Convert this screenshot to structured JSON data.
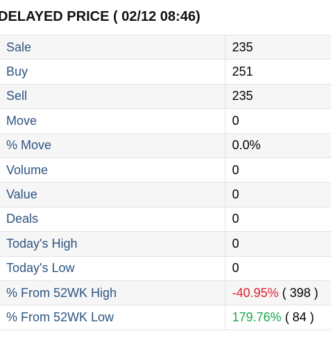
{
  "title": "DELAYED PRICE ( 02/12 08:46)",
  "rows": [
    {
      "label": "Sale",
      "value": "235"
    },
    {
      "label": "Buy",
      "value": "251"
    },
    {
      "label": "Sell",
      "value": "235"
    },
    {
      "label": "Move",
      "value": "0"
    },
    {
      "label": "% Move",
      "value": "0.0%"
    },
    {
      "label": "Volume",
      "value": "0"
    },
    {
      "label": "Value",
      "value": "0"
    },
    {
      "label": "Deals",
      "value": "0"
    },
    {
      "label": "Today's High",
      "value": "0"
    },
    {
      "label": "Today's Low",
      "value": "0"
    },
    {
      "label": "% From 52WK High",
      "pct": "-40.95%",
      "ref": " ( 398 )"
    },
    {
      "label": "% From 52WK Low",
      "pct": "179.76%",
      "ref": " ( 84 )"
    }
  ],
  "colors": {
    "label": "#2e5480",
    "negative": "#e0202e",
    "positive": "#18a64a",
    "row_alt": "#f6f6f6",
    "border": "#e2e2e2"
  }
}
